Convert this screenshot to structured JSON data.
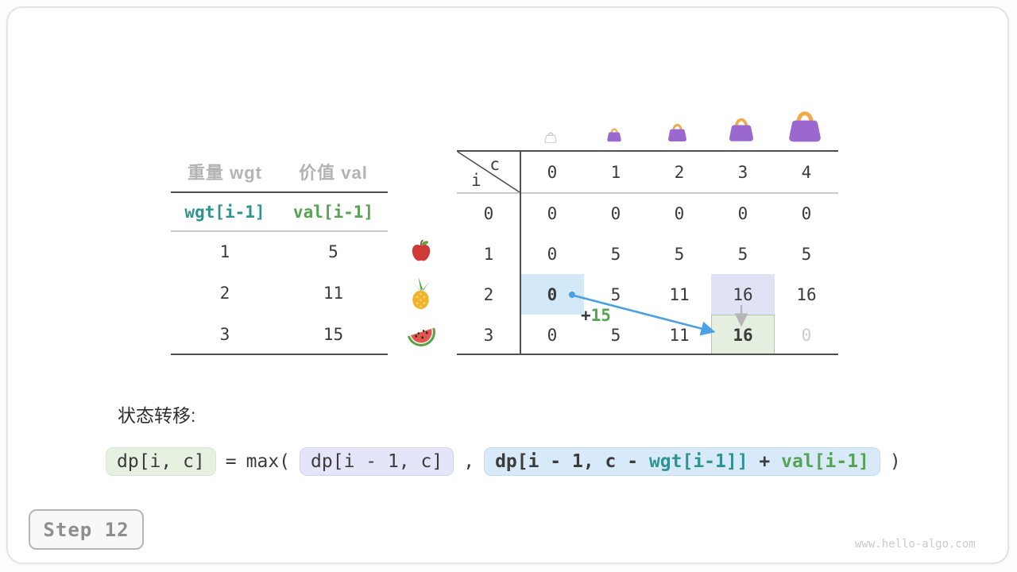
{
  "panel": {
    "step_label": "Step 12",
    "watermark": "www.hello-algo.com"
  },
  "items_table": {
    "col_headers": [
      "重量 wgt",
      "价值 val"
    ],
    "index_row": [
      "wgt[i-1]",
      "val[i-1]"
    ],
    "rows": [
      [
        "1",
        "5"
      ],
      [
        "2",
        "11"
      ],
      [
        "3",
        "15"
      ]
    ],
    "item_icons": [
      "apple-icon",
      "pineapple-icon",
      "watermelon-icon"
    ]
  },
  "dp_table": {
    "corner_col_var": "c",
    "corner_row_var": "i",
    "col_headers": [
      "0",
      "1",
      "2",
      "3",
      "4"
    ],
    "row_headers": [
      "0",
      "1",
      "2",
      "3"
    ],
    "values": [
      [
        "0",
        "0",
        "0",
        "0",
        "0"
      ],
      [
        "0",
        "5",
        "5",
        "5",
        "5"
      ],
      [
        "0",
        "5",
        "11",
        "16",
        "16"
      ],
      [
        "0",
        "5",
        "11",
        "16",
        "0"
      ]
    ],
    "cell_marks": [
      {
        "row": 2,
        "col": 0,
        "mark": "source-blue",
        "bold": true
      },
      {
        "row": 2,
        "col": 3,
        "mark": "compare-lavender",
        "bold": false
      },
      {
        "row": 3,
        "col": 3,
        "mark": "target-green",
        "bold": true
      },
      {
        "row": 3,
        "col": 4,
        "mark": "faded",
        "bold": false
      }
    ],
    "capacity_icons": [
      "ghost-bag-icon",
      "bag-icon-1",
      "bag-icon-2",
      "bag-icon-3",
      "bag-icon-4"
    ],
    "annotation_plus": "+",
    "annotation_value": "15"
  },
  "transition": {
    "label": "状态转移:",
    "lhs": "dp[i, c]",
    "equals": "=",
    "max_open": "max(",
    "keep_option": "dp[i - 1, c]",
    "comma": ",",
    "take_prefix": "dp[i - 1, c - ",
    "take_wgt": "wgt[i-1]]",
    "take_plus": " + ",
    "take_val": "val[i-1]",
    "close_paren": ")"
  },
  "colors": {
    "teal": "#2f9393",
    "green": "#56a351",
    "arrow_blue": "#4aa0e5",
    "arrow_gray": "#b6b6b6",
    "highlight_blue": "#d4e9f8",
    "highlight_lavender": "#e0e2f6",
    "highlight_green": "#e5efe0",
    "bag_purple": "#9a68ce",
    "bag_handle_orange": "#f2aa4d"
  }
}
